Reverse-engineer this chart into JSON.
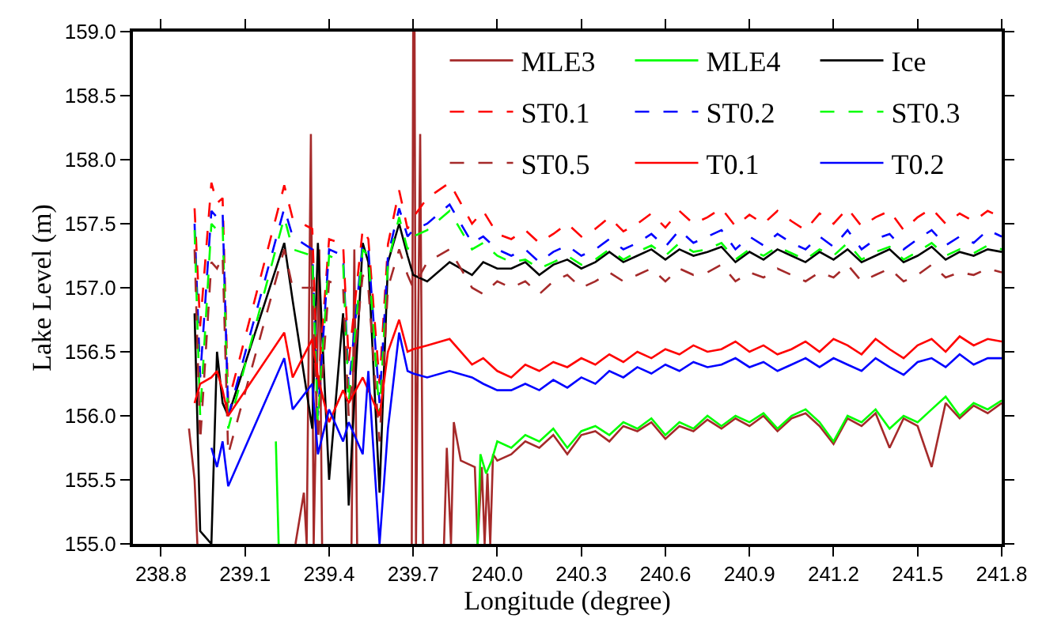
{
  "chart_data": {
    "type": "line",
    "xlabel": "Longitude (degree)",
    "ylabel": "Lake Level (m)",
    "xlim": [
      238.7,
      241.8
    ],
    "xticks": [
      {
        "value": 238.8,
        "label": "238.8"
      },
      {
        "value": 239.1,
        "label": "239.1"
      },
      {
        "value": 239.4,
        "label": "239.4"
      },
      {
        "value": 239.7,
        "label": "239.7"
      },
      {
        "value": 240.0,
        "label": "240.0"
      },
      {
        "value": 240.3,
        "label": "240.3"
      },
      {
        "value": 240.6,
        "label": "240.6"
      },
      {
        "value": 240.9,
        "label": "240.9"
      },
      {
        "value": 241.2,
        "label": "241.2"
      },
      {
        "value": 241.5,
        "label": "241.5"
      },
      {
        "value": 241.8,
        "label": "241.8"
      }
    ],
    "ylim": [
      155.0,
      159.0
    ],
    "yticks": [
      {
        "value": 155.0,
        "label": "155.0"
      },
      {
        "value": 155.5,
        "label": "155.5"
      },
      {
        "value": 156.0,
        "label": "156.0"
      },
      {
        "value": 156.5,
        "label": "156.5"
      },
      {
        "value": 157.0,
        "label": "157.0"
      },
      {
        "value": 157.5,
        "label": "157.5"
      },
      {
        "value": 158.0,
        "label": "158.0"
      },
      {
        "value": 158.5,
        "label": "158.5"
      },
      {
        "value": 159.0,
        "label": "159.0"
      }
    ],
    "legend": "top right",
    "x": [
      238.92,
      238.94,
      238.98,
      239.0,
      239.02,
      239.04,
      239.24,
      239.27,
      239.34,
      239.36,
      239.4,
      239.45,
      239.47,
      239.52,
      239.54,
      239.58,
      239.61,
      239.65,
      239.68,
      239.7,
      239.75,
      239.83,
      239.91,
      239.95,
      240.0,
      240.05,
      240.1,
      240.15,
      240.2,
      240.25,
      240.3,
      240.35,
      240.4,
      240.45,
      240.5,
      240.55,
      240.6,
      240.65,
      240.7,
      240.75,
      240.8,
      240.85,
      240.9,
      240.95,
      241.0,
      241.05,
      241.1,
      241.15,
      241.2,
      241.25,
      241.3,
      241.35,
      241.4,
      241.45,
      241.5,
      241.55,
      241.6,
      241.65,
      241.7,
      241.75,
      241.8
    ],
    "series": [
      {
        "name": "MLE3",
        "color": "#a52a2a",
        "line_style": "solid",
        "x": [
          238.9,
          238.92,
          238.93,
          239.1,
          239.28,
          239.31,
          239.32,
          239.335,
          239.345,
          239.365,
          239.375,
          239.43,
          239.48,
          239.49,
          239.5,
          239.6,
          239.695,
          239.7,
          239.705,
          239.71,
          239.725,
          239.735,
          239.78,
          239.81,
          239.82,
          239.835,
          239.845,
          239.87,
          239.92,
          239.93,
          239.945,
          239.955,
          239.965,
          239.975,
          239.985,
          240.0,
          240.05,
          240.1,
          240.15,
          240.2,
          240.25,
          240.3,
          240.35,
          240.4,
          240.45,
          240.5,
          240.55,
          240.6,
          240.65,
          240.7,
          240.75,
          240.8,
          240.85,
          240.9,
          240.95,
          241.0,
          241.05,
          241.1,
          241.15,
          241.2,
          241.25,
          241.3,
          241.35,
          241.4,
          241.45,
          241.5,
          241.55,
          241.6,
          241.65,
          241.7,
          241.75,
          241.8
        ],
        "values": [
          155.9,
          155.5,
          155.0,
          null,
          155.0,
          155.4,
          155.0,
          158.2,
          155.0,
          157.3,
          155.0,
          null,
          155.0,
          157.3,
          155.0,
          null,
          155.0,
          159.0,
          159.0,
          155.0,
          158.2,
          155.0,
          null,
          155.0,
          155.75,
          155.0,
          155.95,
          155.65,
          155.6,
          155.0,
          155.6,
          155.0,
          155.55,
          155.0,
          155.7,
          155.65,
          155.7,
          155.8,
          155.75,
          155.85,
          155.7,
          155.85,
          155.88,
          155.8,
          155.92,
          155.88,
          155.95,
          155.82,
          155.92,
          155.88,
          155.97,
          155.9,
          155.98,
          155.92,
          156.0,
          155.88,
          155.98,
          156.02,
          155.92,
          155.78,
          155.98,
          155.92,
          156.02,
          155.75,
          155.98,
          155.92,
          155.6,
          156.1,
          155.98,
          156.08,
          156.02,
          156.1
        ]
      },
      {
        "name": "MLE4",
        "color": "#00ff00",
        "line_style": "solid",
        "x": [
          239.21,
          239.22,
          239.5,
          239.93,
          239.94,
          239.96,
          239.98,
          240.0,
          240.05,
          240.1,
          240.15,
          240.2,
          240.25,
          240.3,
          240.35,
          240.4,
          240.45,
          240.5,
          240.55,
          240.6,
          240.65,
          240.7,
          240.75,
          240.8,
          240.85,
          240.9,
          240.95,
          241.0,
          241.05,
          241.1,
          241.15,
          241.2,
          241.25,
          241.3,
          241.35,
          241.4,
          241.45,
          241.5,
          241.55,
          241.6,
          241.65,
          241.7,
          241.75,
          241.8
        ],
        "values": [
          155.8,
          155.0,
          null,
          155.0,
          155.7,
          155.55,
          155.65,
          155.8,
          155.75,
          155.85,
          155.8,
          155.9,
          155.75,
          155.88,
          155.92,
          155.85,
          155.95,
          155.9,
          155.98,
          155.85,
          155.95,
          155.9,
          156.0,
          155.92,
          156.0,
          155.95,
          156.02,
          155.9,
          156.0,
          156.05,
          155.95,
          155.8,
          156.0,
          155.95,
          156.05,
          155.9,
          156.0,
          155.95,
          156.05,
          156.15,
          156.0,
          156.1,
          156.05,
          156.12
        ]
      },
      {
        "name": "Ice",
        "color": "#000000",
        "line_style": "solid",
        "values": [
          156.8,
          155.1,
          155.0,
          156.5,
          156.1,
          156.0,
          157.35,
          156.9,
          155.9,
          157.35,
          155.5,
          156.8,
          155.3,
          157.35,
          157.2,
          155.4,
          157.2,
          157.5,
          157.25,
          157.1,
          157.05,
          157.2,
          157.1,
          157.2,
          157.15,
          157.15,
          157.2,
          157.1,
          157.18,
          157.22,
          157.15,
          157.2,
          157.28,
          157.2,
          157.25,
          157.3,
          157.22,
          157.3,
          157.25,
          157.28,
          157.32,
          157.2,
          157.28,
          157.22,
          157.3,
          157.25,
          157.2,
          157.28,
          157.22,
          157.3,
          157.2,
          157.25,
          157.3,
          157.2,
          157.25,
          157.32,
          157.22,
          157.28,
          157.25,
          157.3,
          157.28
        ]
      },
      {
        "name": "ST0.1",
        "color": "#ff0000",
        "line_style": "dashed",
        "values": [
          157.62,
          156.7,
          157.82,
          157.66,
          157.7,
          156.1,
          157.8,
          157.54,
          157.46,
          156.2,
          157.38,
          157.34,
          156.42,
          157.46,
          157.38,
          156.25,
          157.34,
          157.76,
          157.46,
          157.55,
          157.7,
          157.82,
          157.5,
          157.6,
          157.42,
          157.38,
          157.45,
          157.35,
          157.42,
          157.5,
          157.4,
          157.46,
          157.55,
          157.44,
          157.5,
          157.58,
          157.47,
          157.6,
          157.5,
          157.55,
          157.62,
          157.48,
          157.57,
          157.5,
          157.6,
          157.52,
          157.45,
          157.58,
          157.5,
          157.62,
          157.48,
          157.55,
          157.6,
          157.45,
          157.55,
          157.62,
          157.5,
          157.58,
          157.52,
          157.6,
          157.55
        ]
      },
      {
        "name": "ST0.2",
        "color": "#0000ff",
        "line_style": "dashed",
        "values": [
          157.5,
          156.3,
          157.6,
          157.55,
          157.6,
          156.0,
          157.62,
          157.4,
          157.3,
          156.0,
          157.3,
          157.25,
          156.2,
          157.35,
          157.3,
          156.1,
          157.25,
          157.62,
          157.4,
          157.45,
          157.5,
          157.65,
          157.35,
          157.4,
          157.3,
          157.25,
          157.3,
          157.2,
          157.28,
          157.33,
          157.25,
          157.3,
          157.38,
          157.3,
          157.35,
          157.42,
          157.32,
          157.45,
          157.35,
          157.4,
          157.45,
          157.3,
          157.4,
          157.33,
          157.42,
          157.35,
          157.3,
          157.4,
          157.32,
          157.45,
          157.3,
          157.38,
          157.42,
          157.3,
          157.38,
          157.45,
          157.33,
          157.4,
          157.35,
          157.45,
          157.4
        ]
      },
      {
        "name": "ST0.3",
        "color": "#00ff00",
        "line_style": "dashed",
        "values": [
          157.45,
          156.0,
          157.5,
          157.45,
          157.5,
          155.9,
          157.55,
          157.3,
          157.25,
          155.95,
          157.25,
          157.2,
          156.1,
          157.3,
          157.25,
          156.0,
          157.2,
          157.55,
          157.3,
          157.4,
          157.45,
          157.6,
          157.3,
          157.35,
          157.25,
          157.2,
          157.22,
          157.15,
          157.2,
          157.25,
          157.18,
          157.22,
          157.3,
          157.22,
          157.28,
          157.33,
          157.25,
          157.35,
          157.28,
          157.3,
          157.35,
          157.22,
          157.3,
          157.25,
          157.32,
          157.27,
          157.22,
          157.3,
          157.25,
          157.35,
          157.22,
          157.28,
          157.32,
          157.22,
          157.28,
          157.35,
          157.25,
          157.3,
          157.27,
          157.33,
          157.3
        ]
      },
      {
        "name": "ST0.5",
        "color": "#a52a2a",
        "line_style": "dashed",
        "values": [
          157.3,
          155.8,
          157.2,
          157.15,
          157.25,
          155.7,
          157.3,
          157.0,
          157.0,
          155.8,
          157.05,
          157.0,
          156.0,
          157.1,
          157.0,
          155.8,
          157.0,
          157.3,
          157.1,
          157.0,
          157.2,
          157.3,
          157.0,
          156.95,
          157.05,
          157.0,
          157.05,
          156.95,
          157.05,
          157.1,
          157.0,
          157.05,
          157.12,
          157.05,
          157.1,
          157.15,
          157.05,
          157.15,
          157.1,
          157.12,
          157.18,
          157.05,
          157.12,
          157.08,
          157.15,
          157.1,
          157.05,
          157.12,
          157.08,
          157.18,
          157.05,
          157.1,
          157.15,
          157.05,
          157.1,
          157.18,
          157.08,
          157.12,
          157.1,
          157.15,
          157.12
        ]
      },
      {
        "name": "T0.1",
        "color": "#ff0000",
        "line_style": "solid",
        "values": [
          156.1,
          156.25,
          156.3,
          156.35,
          156.2,
          156.0,
          156.65,
          156.3,
          156.6,
          156.3,
          155.95,
          156.2,
          156.1,
          156.3,
          156.2,
          156.0,
          156.5,
          156.75,
          156.5,
          156.52,
          156.55,
          156.6,
          156.4,
          156.45,
          156.35,
          156.3,
          156.4,
          156.35,
          156.42,
          156.38,
          156.45,
          156.4,
          156.48,
          156.42,
          156.5,
          156.45,
          156.52,
          156.48,
          156.55,
          156.5,
          156.52,
          156.58,
          156.5,
          156.55,
          156.48,
          156.52,
          156.58,
          156.5,
          156.6,
          156.55,
          156.48,
          156.6,
          156.52,
          156.45,
          156.55,
          156.6,
          156.5,
          156.62,
          156.55,
          156.6,
          156.58
        ]
      },
      {
        "name": "T0.2",
        "color": "#0000ff",
        "line_style": "solid",
        "values": [
          null,
          null,
          155.75,
          155.6,
          155.8,
          155.45,
          156.45,
          156.05,
          156.25,
          155.7,
          156.05,
          155.8,
          155.95,
          155.7,
          156.35,
          155.0,
          155.9,
          156.65,
          156.35,
          156.33,
          156.3,
          156.35,
          156.3,
          156.25,
          156.2,
          156.2,
          156.25,
          156.2,
          156.28,
          156.22,
          156.3,
          156.25,
          156.35,
          156.3,
          156.38,
          156.33,
          156.4,
          156.35,
          156.42,
          156.38,
          156.4,
          156.45,
          156.38,
          156.42,
          156.35,
          156.4,
          156.45,
          156.38,
          156.45,
          156.4,
          156.35,
          156.45,
          156.38,
          156.32,
          156.42,
          156.45,
          156.38,
          156.48,
          156.4,
          156.45,
          156.45
        ]
      }
    ]
  }
}
